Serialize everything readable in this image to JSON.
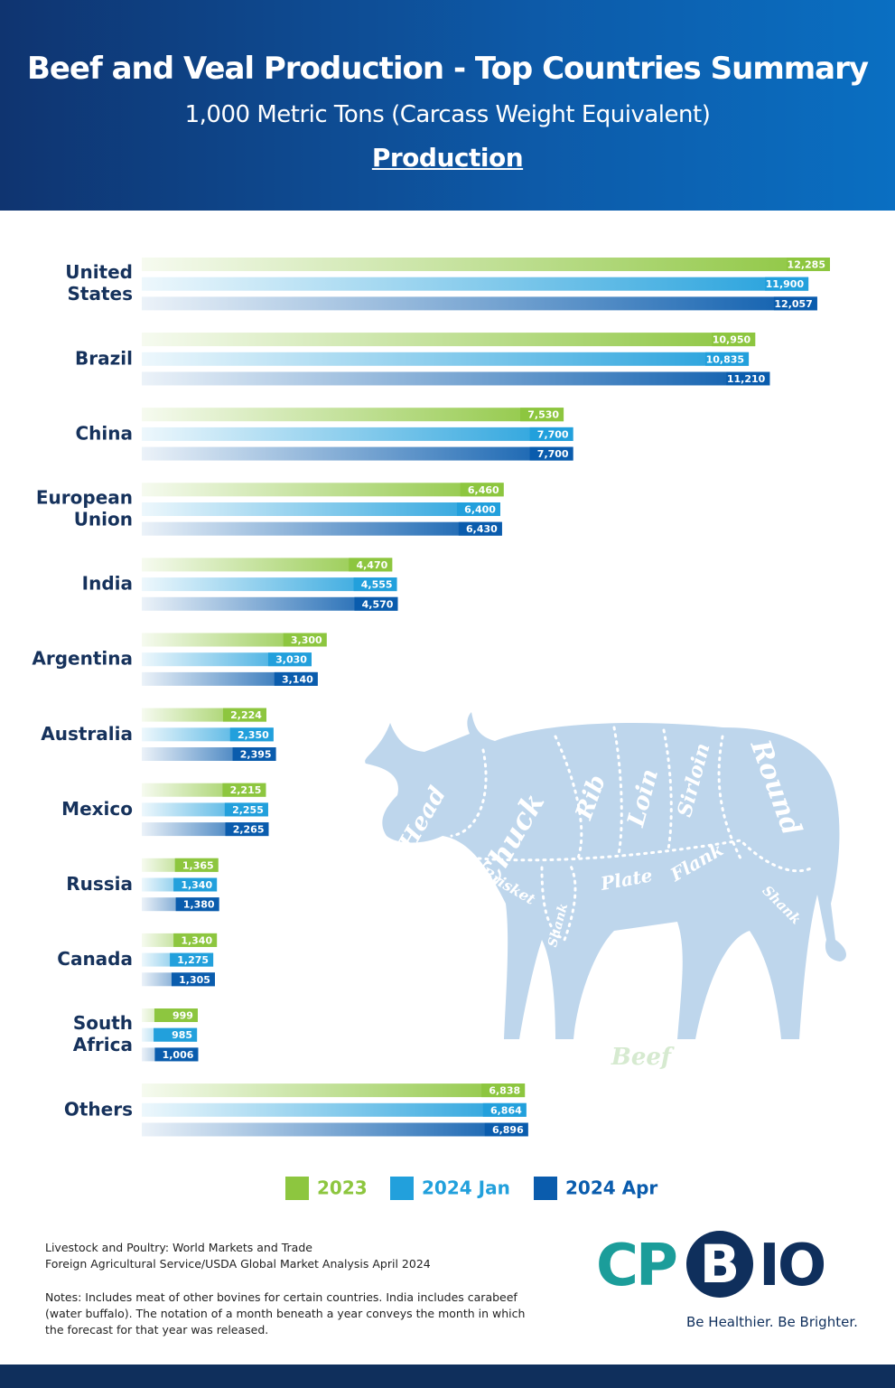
{
  "header": {
    "title": "Beef and Veal Production - Top Countries Summary",
    "subtitle": "1,000 Metric Tons (Carcass Weight Equivalent)",
    "section": "Production"
  },
  "chart_data": {
    "type": "bar",
    "orientation": "horizontal",
    "categories": [
      "United\nStates",
      "Brazil",
      "China",
      "European\nUnion",
      "India",
      "Argentina",
      "Australia",
      "Mexico",
      "Russia",
      "Canada",
      "South\nAfrica",
      "Others"
    ],
    "series": [
      {
        "name": "2023",
        "color": "#8dc63f",
        "values": [
          12285,
          10950,
          7530,
          6460,
          4470,
          3300,
          2224,
          2215,
          1365,
          1340,
          999,
          6838
        ],
        "value_labels": [
          "12,285",
          "10,950",
          "7,530",
          "6,460",
          "4,470",
          "3,300",
          "2,224",
          "2,215",
          "1,365",
          "1,340",
          "999",
          "6,838"
        ]
      },
      {
        "name": "2024 Jan",
        "color": "#22a0dc",
        "values": [
          11900,
          10835,
          7700,
          6400,
          4555,
          3030,
          2350,
          2255,
          1340,
          1275,
          985,
          6864
        ],
        "value_labels": [
          "11,900",
          "10,835",
          "7,700",
          "6,400",
          "4,555",
          "3,030",
          "2,350",
          "2,255",
          "1,340",
          "1,275",
          "985",
          "6,864"
        ]
      },
      {
        "name": "2024 Apr",
        "color": "#0a5cad",
        "values": [
          12057,
          11210,
          7700,
          6430,
          4570,
          3140,
          2395,
          2265,
          1380,
          1305,
          1006,
          6896
        ],
        "value_labels": [
          "12,057",
          "11,210",
          "7,700",
          "6,430",
          "4,570",
          "3,140",
          "2,395",
          "2,265",
          "1,380",
          "1,305",
          "1,006",
          "6,896"
        ]
      }
    ],
    "legend": "bottom"
  },
  "illustration": {
    "cuts": [
      "Head",
      "Chuck",
      "Rib",
      "Loin",
      "Sirloin",
      "Round",
      "Brisket",
      "Shank",
      "Plate",
      "Flank",
      "Shank"
    ],
    "caption": "Beef"
  },
  "footer": {
    "source": [
      "Livestock and Poultry: World Markets and Trade",
      "Foreign Agricultural Service/USDA  Global Market Analysis     April 2024"
    ],
    "notes": "Notes: Includes meat of other bovines for certain countries. India includes carabeef (water buffalo). The notation of a month beneath a year conveys the month in which the forecast for that year was released.",
    "logo": [
      "CP",
      "B",
      "IO"
    ],
    "tagline": "Be Healthier. Be Brighter."
  }
}
